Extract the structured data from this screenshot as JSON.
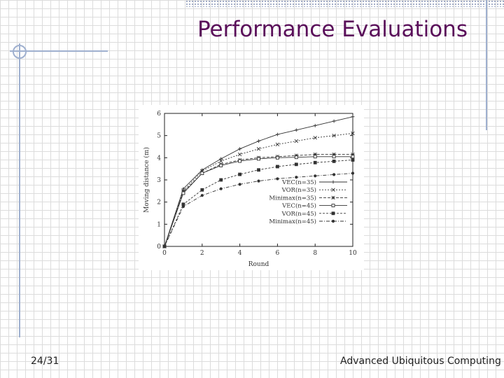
{
  "slide": {
    "title": "Performance Evaluations",
    "page_number": "24/31",
    "footer": "Advanced Ubiquitous Computing"
  },
  "chart_data": {
    "type": "line",
    "title": "",
    "xlabel": "Round",
    "ylabel": "Moving distance (m)",
    "xlim": [
      0,
      10
    ],
    "ylim": [
      0,
      6
    ],
    "xticks": [
      0,
      2,
      4,
      6,
      8,
      10
    ],
    "yticks": [
      0,
      1,
      2,
      3,
      4,
      5,
      6
    ],
    "legend_position": "bottom-right",
    "grid": false,
    "x": [
      0,
      1,
      2,
      3,
      4,
      5,
      6,
      7,
      8,
      9,
      10
    ],
    "series": [
      {
        "name": "VEC(n=35)",
        "values": [
          0,
          2.6,
          3.45,
          3.95,
          4.4,
          4.75,
          5.05,
          5.25,
          5.45,
          5.65,
          5.85
        ]
      },
      {
        "name": "VOR(n=35)",
        "values": [
          0,
          2.5,
          3.4,
          3.85,
          4.15,
          4.4,
          4.6,
          4.75,
          4.9,
          5.0,
          5.1
        ]
      },
      {
        "name": "Minimax(n=35)",
        "values": [
          0,
          2.45,
          3.3,
          3.7,
          3.9,
          4.0,
          4.05,
          4.1,
          4.15,
          4.15,
          4.15
        ]
      },
      {
        "name": "VEC(n=45)",
        "values": [
          0,
          2.4,
          3.3,
          3.65,
          3.85,
          3.95,
          4.0,
          4.02,
          4.05,
          4.05,
          4.05
        ]
      },
      {
        "name": "VOR(n=45)",
        "values": [
          0,
          1.9,
          2.55,
          3.0,
          3.25,
          3.45,
          3.6,
          3.7,
          3.78,
          3.84,
          3.9
        ]
      },
      {
        "name": "Minimax(n=45)",
        "values": [
          0,
          1.8,
          2.3,
          2.6,
          2.8,
          2.95,
          3.05,
          3.12,
          3.18,
          3.24,
          3.3
        ]
      }
    ],
    "colors": {
      "line": "#333333",
      "axis": "#222222"
    }
  }
}
